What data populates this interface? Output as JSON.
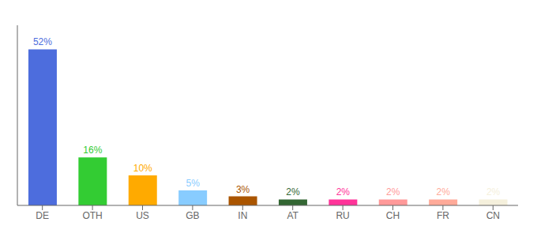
{
  "chart_data": {
    "type": "bar",
    "categories": [
      "DE",
      "OTH",
      "US",
      "GB",
      "IN",
      "AT",
      "RU",
      "CH",
      "FR",
      "CN"
    ],
    "values": [
      52,
      16,
      10,
      5,
      3,
      2,
      2,
      2,
      2,
      2
    ],
    "value_labels": [
      "52%",
      "16%",
      "10%",
      "5%",
      "3%",
      "2%",
      "2%",
      "2%",
      "2%",
      "2%"
    ],
    "data_labels": true,
    "colors": [
      "#4d6ddd",
      "#33cc33",
      "#ffaa00",
      "#88ccff",
      "#aa5500",
      "#336633",
      "#ff3399",
      "#ff9999",
      "#ffaa99",
      "#f5f0dc"
    ],
    "ylim": [
      0,
      60
    ],
    "tick_labels": "x",
    "grid": false
  }
}
